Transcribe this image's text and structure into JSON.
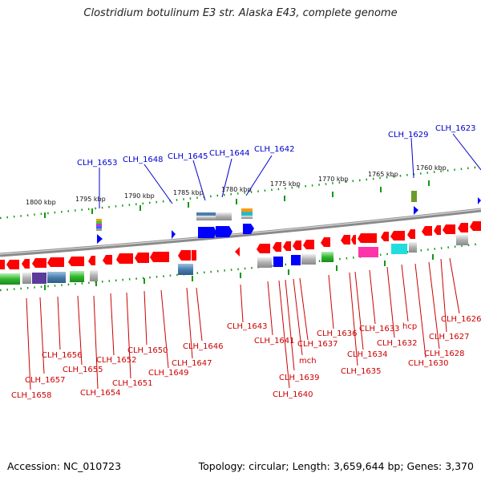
{
  "title": "Clostridium botulinum E3 str. Alaska E43, complete genome",
  "footer": {
    "accession": "Accession: NC_010723",
    "summary": "Topology: circular; Length: 3,659,644 bp; Genes: 3,370"
  },
  "scale_labels": [
    "1800 kbp",
    "1795 kbp",
    "1790 kbp",
    "1785 kbp",
    "1780 kbp",
    "1775 kbp",
    "1770 kbp",
    "1765 kbp",
    "1760 kbp"
  ],
  "top_genes": [
    "CLH_1653",
    "CLH_1648",
    "CLH_1645",
    "CLH_1644",
    "CLH_1642",
    "CLH_1629",
    "CLH_1623"
  ],
  "bottom_genes": [
    "CLH_1658",
    "CLH_1657",
    "CLH_1656",
    "CLH_1655",
    "CLH_1654",
    "CLH_1652",
    "CLH_1651",
    "CLH_1650",
    "CLH_1649",
    "CLH_1647",
    "CLH_1646",
    "CLH_1643",
    "CLH_1641",
    "CLH_1640",
    "CLH_1639",
    "mch",
    "CLH_1637",
    "CLH_1636",
    "CLH_1635",
    "CLH_1634",
    "CLH_1633",
    "CLH_1632",
    "hcp",
    "CLH_1630",
    "CLH_1628",
    "CLH_1627",
    "CLH_1626"
  ],
  "colors": {
    "backbone": "#8a8a8a",
    "forward_gene": "#0000ff",
    "reverse_gene": "#ff0000",
    "top_label": "#0000cc",
    "bottom_label": "#cc0000",
    "tick": "#119911"
  }
}
